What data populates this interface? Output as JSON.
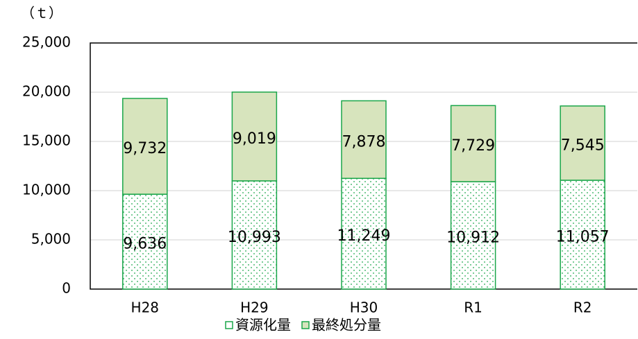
{
  "chart_data": {
    "type": "stacked_bar",
    "y_label": "（ｔ）",
    "categories": [
      "H28",
      "H29",
      "H30",
      "R1",
      "R2"
    ],
    "series": [
      {
        "name": "資源化量",
        "color": "#1aa64a",
        "values": [
          9636,
          10993,
          11249,
          10912,
          11057
        ],
        "value_labels": [
          "9,636",
          "10,993",
          "11,249",
          "10,912",
          "11,057"
        ]
      },
      {
        "name": "最終処分量",
        "color": "#d7e4bd",
        "values": [
          9732,
          9019,
          7878,
          7729,
          7545
        ],
        "value_labels": [
          "9,732",
          "9,019",
          "7,878",
          "7,729",
          "7,545"
        ]
      }
    ],
    "ylim": [
      0,
      25000
    ],
    "yticks": [
      0,
      {
        "value": 5000,
        "label": "5,000"
      },
      {
        "value": 10000,
        "label": "10,000"
      },
      {
        "value": 15000,
        "label": "15,000"
      },
      {
        "value": 20000,
        "label": "20,000"
      },
      {
        "value": 25000,
        "label": "25,000"
      }
    ],
    "grid": true
  }
}
